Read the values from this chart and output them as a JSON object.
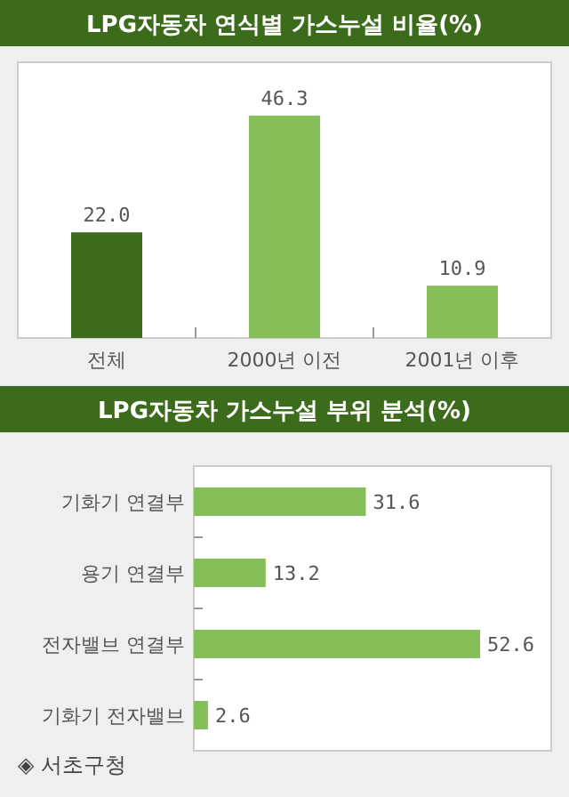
{
  "chart_data": [
    {
      "type": "bar",
      "title": "LPG자동차 연식별 가스누설 비율(%)",
      "categories": [
        "전체",
        "2000년 이전",
        "2001년 이후"
      ],
      "values": [
        22.0,
        46.3,
        10.9
      ],
      "value_labels": [
        "22.0",
        "46.3",
        "10.9"
      ],
      "colors": [
        "#3d6b1c",
        "#86bf58",
        "#86bf58"
      ]
    },
    {
      "type": "bar",
      "orientation": "horizontal",
      "title": "LPG자동차 가스누설 부위 분석(%)",
      "categories": [
        "기화기 연결부",
        "용기 연결부",
        "전자밸브 연결부",
        "기화기 전자밸브"
      ],
      "values": [
        31.6,
        13.2,
        52.6,
        2.6
      ],
      "value_labels": [
        "31.6",
        "13.2",
        "52.6",
        "2.6"
      ],
      "color": "#86bf58",
      "annotations": [
        "◈ 서초구청"
      ]
    }
  ]
}
